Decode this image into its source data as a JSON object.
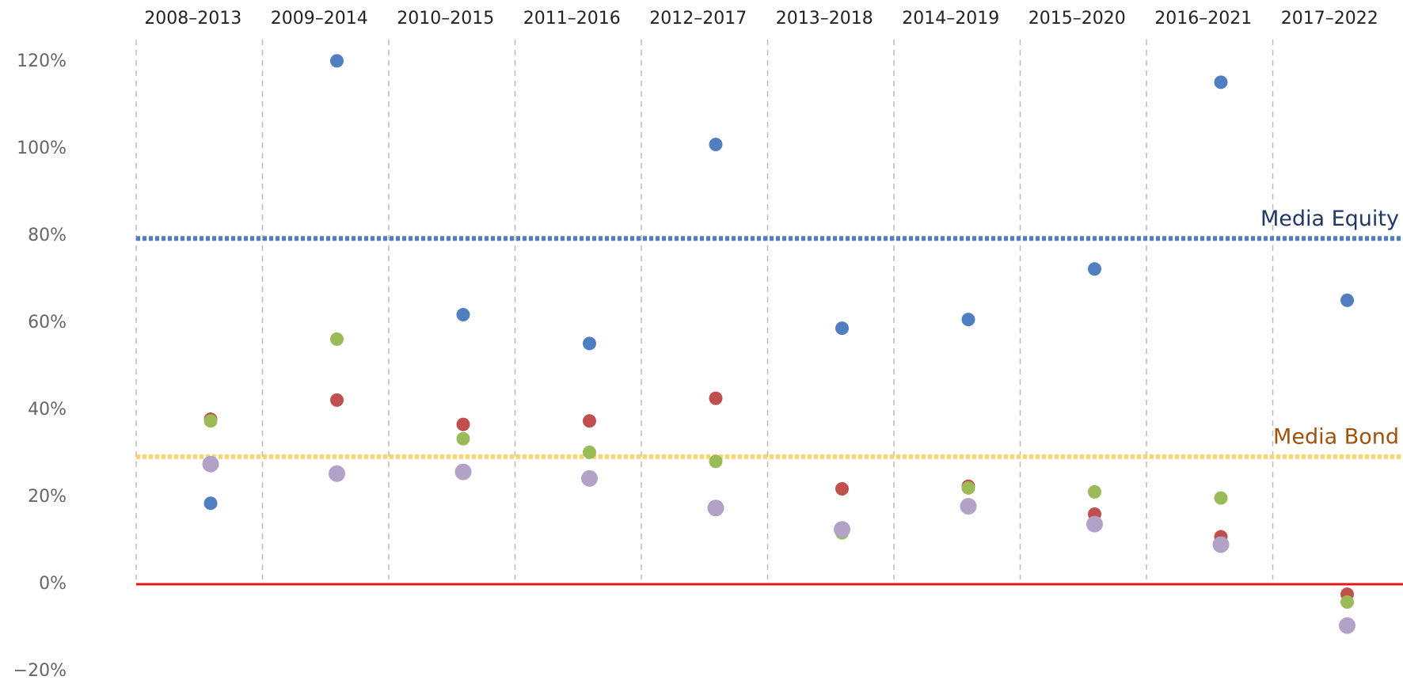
{
  "chart_data": {
    "type": "scatter",
    "categories": [
      "2008–2013",
      "2009–2014",
      "2010–2015",
      "2011–2016",
      "2012–2017",
      "2013–2018",
      "2014–2019",
      "2015–2020",
      "2016–2021",
      "2017–2022"
    ],
    "series": [
      {
        "color": "#4f7fc0",
        "values": [
          18.6,
          120.2,
          61.9,
          55.3,
          101.0,
          58.8,
          60.8,
          72.4,
          115.3,
          65.2
        ]
      },
      {
        "color": "#c0504d",
        "values": [
          37.9,
          42.3,
          36.7,
          37.5,
          42.7,
          21.9,
          22.5,
          16.1,
          10.9,
          -2.3
        ]
      },
      {
        "color": "#9bbb59",
        "values": [
          37.5,
          56.3,
          33.4,
          30.3,
          28.2,
          11.8,
          22.1,
          21.2,
          19.8,
          -4.1
        ]
      },
      {
        "color": "#b3a2c7",
        "values": [
          27.6,
          25.4,
          25.8,
          24.3,
          17.5,
          12.6,
          17.9,
          13.8,
          9.1,
          -9.5
        ]
      }
    ],
    "reference_lines": [
      {
        "label": "Media Equity",
        "value": 79.4,
        "color": "#4f7fc0",
        "label_color": "#1f3864"
      },
      {
        "label": "Media Bond",
        "value": 29.3,
        "color": "#fcd36e",
        "label_color": "#a0520c"
      }
    ],
    "zero_line_color": "#e31a1c",
    "ylim": [
      -20,
      120
    ],
    "yticks": [
      {
        "value": -20,
        "label": "−20%"
      },
      {
        "value": 0,
        "label": "0%"
      },
      {
        "value": 20,
        "label": "20%"
      },
      {
        "value": 40,
        "label": "40%"
      },
      {
        "value": 60,
        "label": "60%"
      },
      {
        "value": 80,
        "label": "80%"
      },
      {
        "value": 100,
        "label": "100%"
      },
      {
        "value": 120,
        "label": "120%"
      }
    ]
  }
}
